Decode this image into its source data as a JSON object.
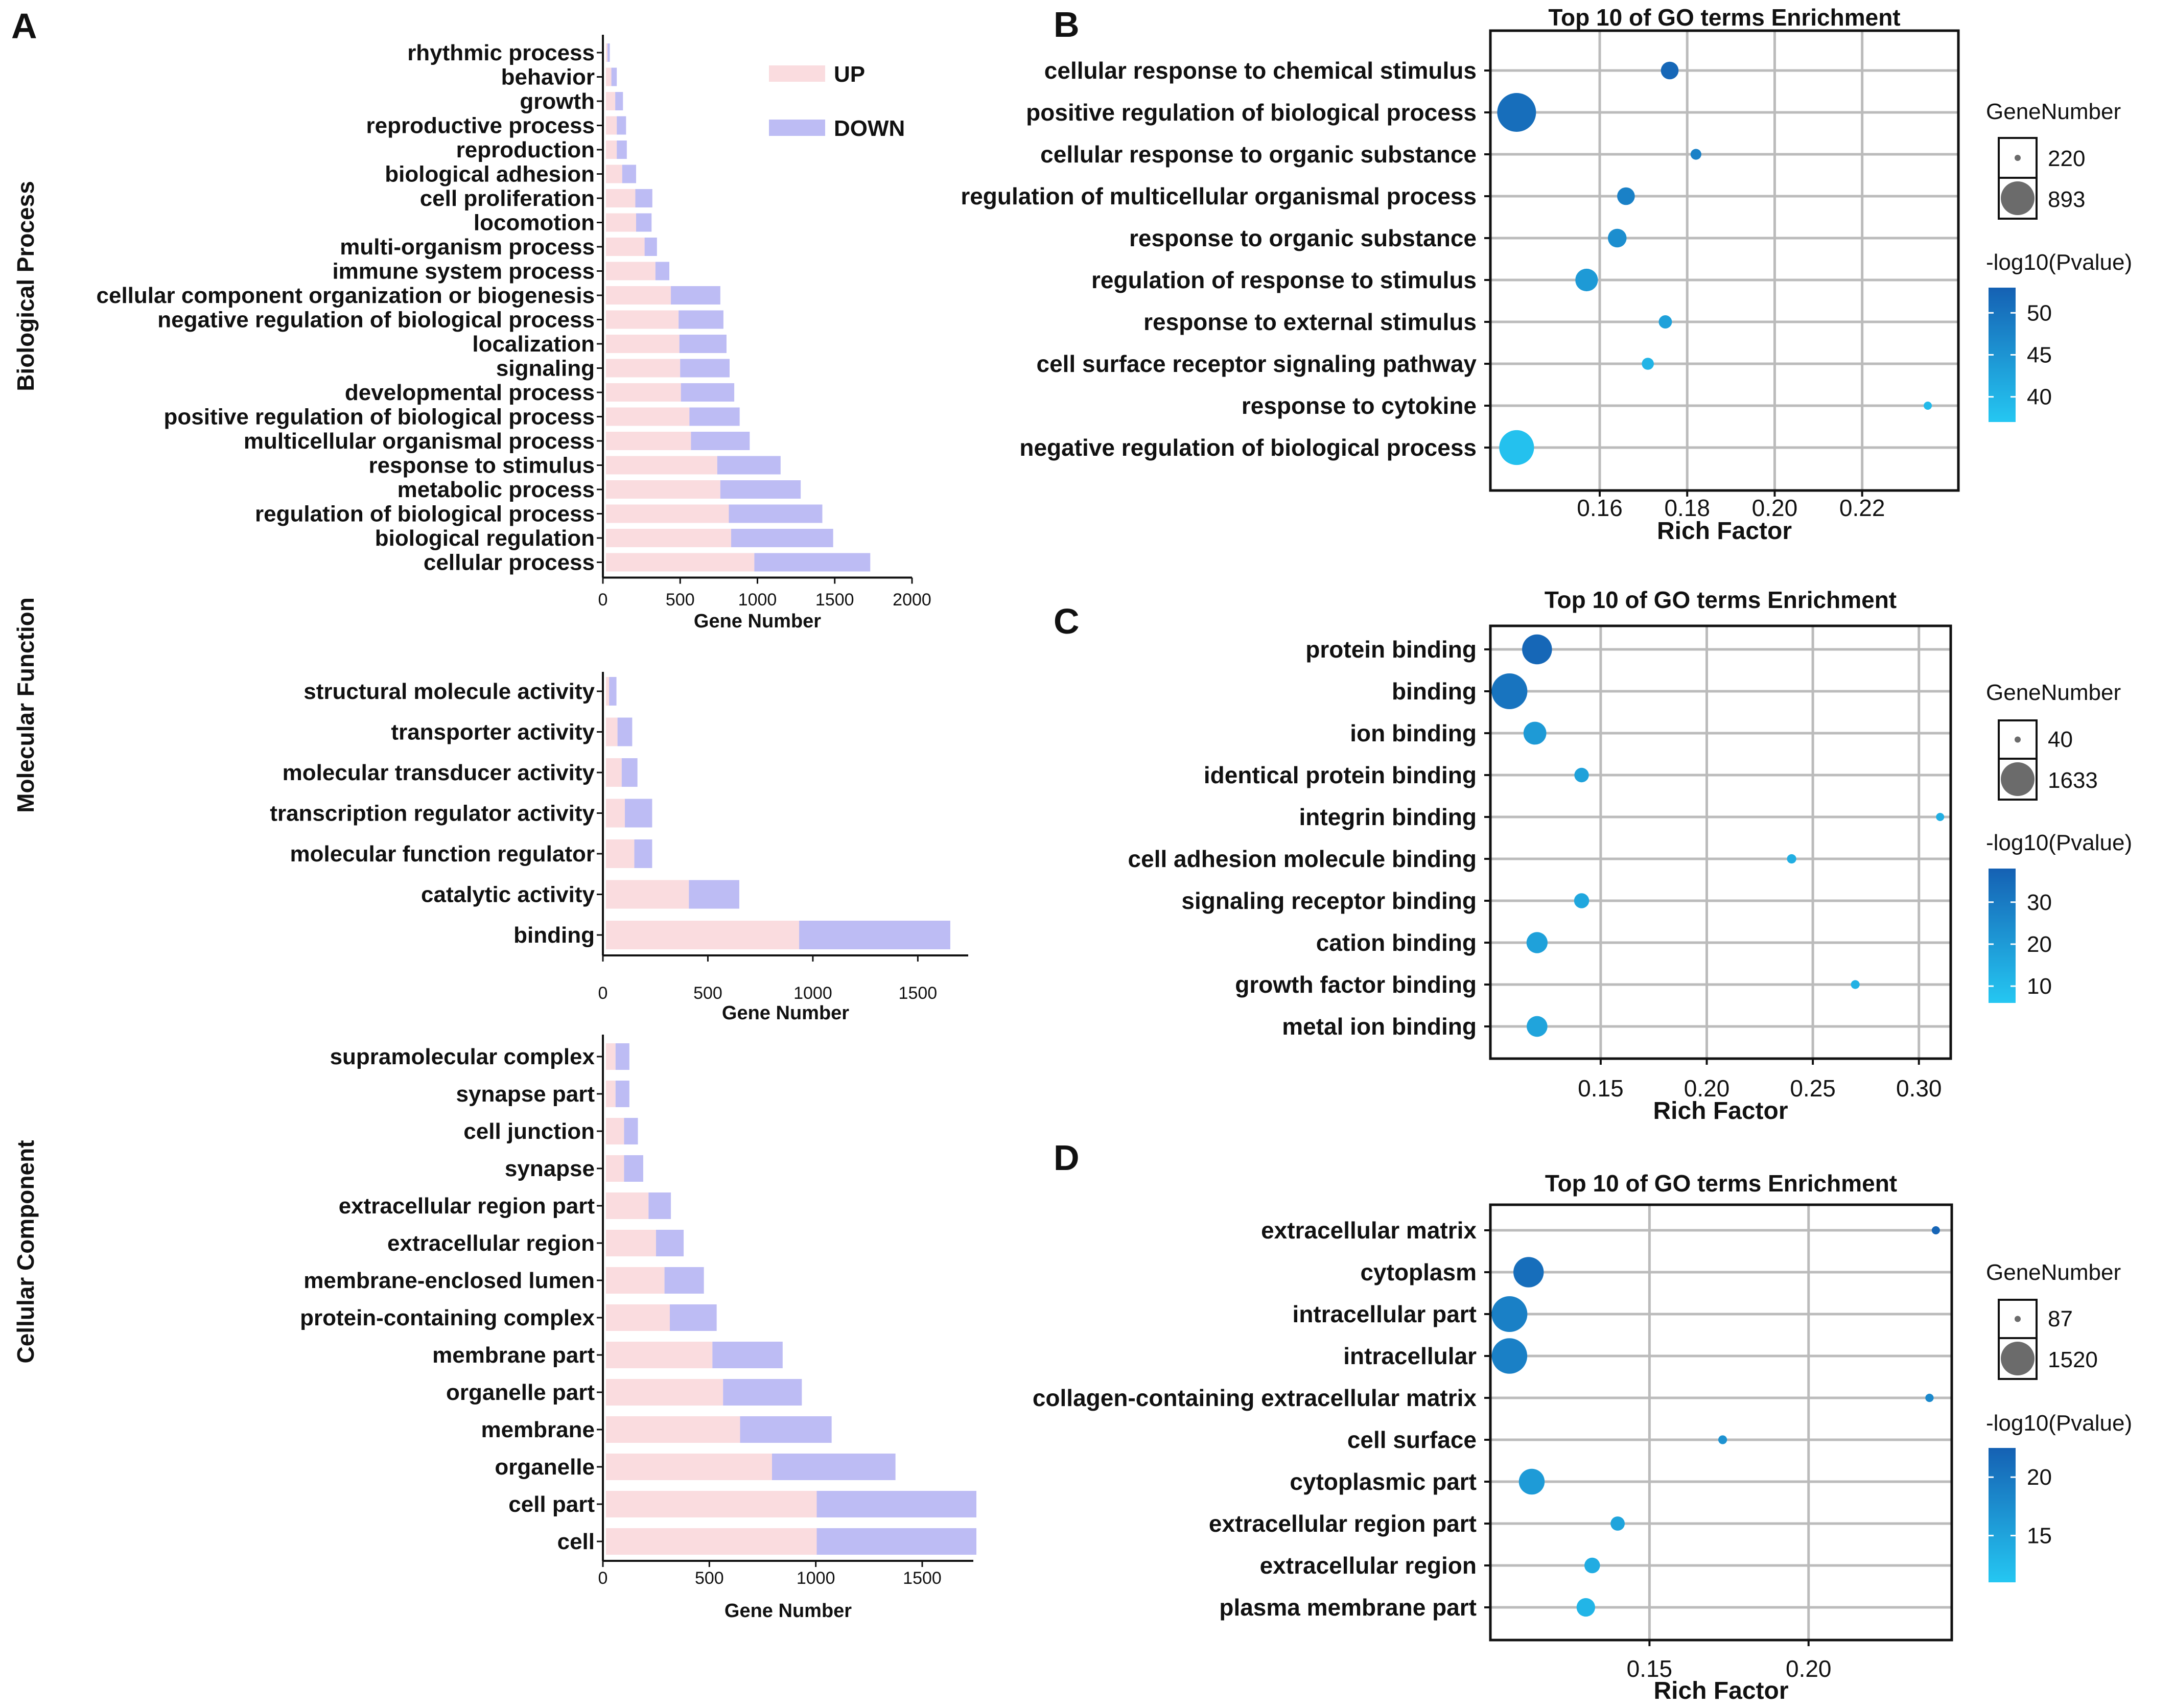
{
  "colors": {
    "up": "#fadcdf",
    "down": "#bdbcf4",
    "grid": "#bbbbbb",
    "p_high": "#1561b3",
    "p_low": "#25c7f2",
    "size_swatch": "#6b6b6b"
  },
  "panels": {
    "A": "A",
    "B": "B",
    "C": "C",
    "D": "D"
  },
  "legend_bar": {
    "up": "UP",
    "down": "DOWN"
  },
  "chart_data": [
    {
      "id": "bp",
      "panel": "A",
      "type": "bar",
      "stacked": true,
      "orientation": "horizontal",
      "section_label": "Biological Process",
      "xlabel": "Gene Number",
      "xlim": [
        0,
        2000
      ],
      "xticks": [
        0,
        500,
        1000,
        1500,
        2000
      ],
      "categories": [
        "rhythmic process",
        "behavior",
        "growth",
        "reproductive process",
        "reproduction",
        "biological adhesion",
        "cell proliferation",
        "locomotion",
        "multi-organism process",
        "immune system process",
        "cellular component organization or biogenesis",
        "negative regulation of biological process",
        "localization",
        "signaling",
        "developmental process",
        "positive regulation of biological process",
        "multicellular organismal process",
        "response to stimulus",
        "metabolic process",
        "regulation of biological process",
        "biological regulation",
        "cellular process"
      ],
      "series": [
        {
          "name": "UP",
          "values": [
            10,
            35,
            60,
            70,
            70,
            105,
            190,
            195,
            250,
            320,
            420,
            470,
            475,
            480,
            485,
            540,
            550,
            720,
            740,
            795,
            810,
            960
          ]
        },
        {
          "name": "DOWN",
          "values": [
            15,
            35,
            50,
            60,
            65,
            90,
            110,
            100,
            80,
            90,
            320,
            290,
            305,
            320,
            345,
            325,
            380,
            410,
            520,
            605,
            660,
            750
          ]
        }
      ]
    },
    {
      "id": "mf",
      "panel": "A",
      "type": "bar",
      "stacked": true,
      "orientation": "horizontal",
      "section_label": "Molecular Function",
      "xlabel": "Gene Number",
      "xlim": [
        0,
        1740
      ],
      "xticks": [
        0,
        500,
        1000,
        1500
      ],
      "categories": [
        "structural molecule activity",
        "transporter activity",
        "molecular transducer activity",
        "transcription regulator activity",
        "molecular function regulator",
        "catalytic activity",
        "binding"
      ],
      "series": [
        {
          "name": "UP",
          "values": [
            15,
            55,
            75,
            90,
            135,
            395,
            920
          ]
        },
        {
          "name": "DOWN",
          "values": [
            35,
            70,
            75,
            130,
            85,
            240,
            720
          ]
        }
      ]
    },
    {
      "id": "cc",
      "panel": "A",
      "type": "bar",
      "stacked": true,
      "orientation": "horizontal",
      "section_label": "Cellular Component",
      "xlabel": "Gene Number",
      "xlim": [
        0,
        1740
      ],
      "xticks": [
        0,
        500,
        1000,
        1500
      ],
      "categories": [
        "supramolecular complex",
        "synapse part",
        "cell junction",
        "synapse",
        "extracellular region part",
        "extracellular region",
        "membrane-enclosed lumen",
        "protein-containing complex",
        "membrane part",
        "organelle part",
        "membrane",
        "organelle",
        "cell part",
        "cell"
      ],
      "series": [
        {
          "name": "UP",
          "values": [
            45,
            45,
            85,
            85,
            200,
            235,
            275,
            300,
            500,
            550,
            630,
            780,
            990,
            990
          ]
        },
        {
          "name": "DOWN",
          "values": [
            65,
            65,
            65,
            90,
            105,
            130,
            185,
            220,
            330,
            370,
            430,
            580,
            750,
            750
          ]
        }
      ]
    },
    {
      "id": "go_b",
      "panel": "B",
      "type": "scatter",
      "title": "Top 10 of GO terms Enrichment",
      "xlabel": "Rich Factor",
      "xlim": [
        0.135,
        0.242
      ],
      "xticks": [
        0.16,
        0.18,
        0.2,
        0.22
      ],
      "tick_format": "0.00",
      "categories": [
        "cellular response to chemical stimulus",
        "positive regulation of biological process",
        "cellular response to organic substance",
        "regulation of multicellular organismal process",
        "response to organic substance",
        "regulation of response to stimulus",
        "response to external stimulus",
        "cell surface receptor signaling pathway",
        "response to cytokine",
        "negative regulation of biological process"
      ],
      "rich_factor": [
        0.176,
        0.141,
        0.182,
        0.166,
        0.164,
        0.157,
        0.175,
        0.171,
        0.235,
        0.141
      ],
      "gene_number": [
        380,
        893,
        260,
        380,
        400,
        480,
        300,
        280,
        220,
        780
      ],
      "neg_log10_p": [
        52,
        51,
        48,
        48,
        46,
        44,
        43,
        40,
        39,
        38
      ],
      "size_legend": {
        "title": "GeneNumber",
        "min": 220,
        "max": 893
      },
      "color_legend": {
        "title": "-log10(Pvalue)",
        "min": 37,
        "max": 53,
        "ticks": [
          50,
          45,
          40
        ]
      }
    },
    {
      "id": "go_c",
      "panel": "C",
      "type": "scatter",
      "title": "Top 10 of GO terms Enrichment",
      "xlabel": "Rich Factor",
      "xlim": [
        0.098,
        0.315
      ],
      "xticks": [
        0.15,
        0.2,
        0.25,
        0.3
      ],
      "tick_format": "0.00",
      "categories": [
        "protein binding",
        "binding",
        "ion binding",
        "identical protein binding",
        "integrin binding",
        "cell adhesion molecule binding",
        "signaling receptor binding",
        "cation binding",
        "growth factor binding",
        "metal ion binding"
      ],
      "rich_factor": [
        0.12,
        0.107,
        0.119,
        0.141,
        0.31,
        0.24,
        0.141,
        0.12,
        0.27,
        0.12
      ],
      "gene_number": [
        1100,
        1633,
        600,
        200,
        40,
        60,
        220,
        500,
        50,
        480
      ],
      "neg_log10_p": [
        36,
        32,
        20,
        18,
        14,
        14,
        16,
        18,
        13,
        17
      ],
      "size_legend": {
        "title": "GeneNumber",
        "min": 40,
        "max": 1633
      },
      "color_legend": {
        "title": "-log10(Pvalue)",
        "min": 6,
        "max": 38,
        "ticks": [
          30,
          20,
          10
        ]
      }
    },
    {
      "id": "go_d",
      "panel": "D",
      "type": "scatter",
      "title": "Top 10 of GO terms Enrichment",
      "xlabel": "Rich Factor",
      "xlim": [
        0.1,
        0.245
      ],
      "xticks": [
        0.15,
        0.2
      ],
      "tick_format": "0.00",
      "categories": [
        "extracellular matrix",
        "cytoplasm",
        "intracellular part",
        "intracellular",
        "collagen-containing extracellular matrix",
        "cell surface",
        "cytoplasmic part",
        "extracellular region part",
        "extracellular region",
        "plasma membrane part"
      ],
      "rich_factor": [
        0.24,
        0.112,
        0.106,
        0.106,
        0.238,
        0.173,
        0.113,
        0.14,
        0.132,
        0.13
      ],
      "gene_number": [
        87,
        1100,
        1520,
        1500,
        90,
        100,
        800,
        250,
        300,
        420
      ],
      "neg_log10_p": [
        22,
        21,
        19,
        19,
        18,
        17,
        16,
        15,
        14,
        13
      ],
      "size_legend": {
        "title": "GeneNumber",
        "min": 87,
        "max": 1520
      },
      "color_legend": {
        "title": "-log10(Pvalue)",
        "min": 11,
        "max": 22.5,
        "ticks": [
          20,
          15
        ]
      }
    }
  ]
}
